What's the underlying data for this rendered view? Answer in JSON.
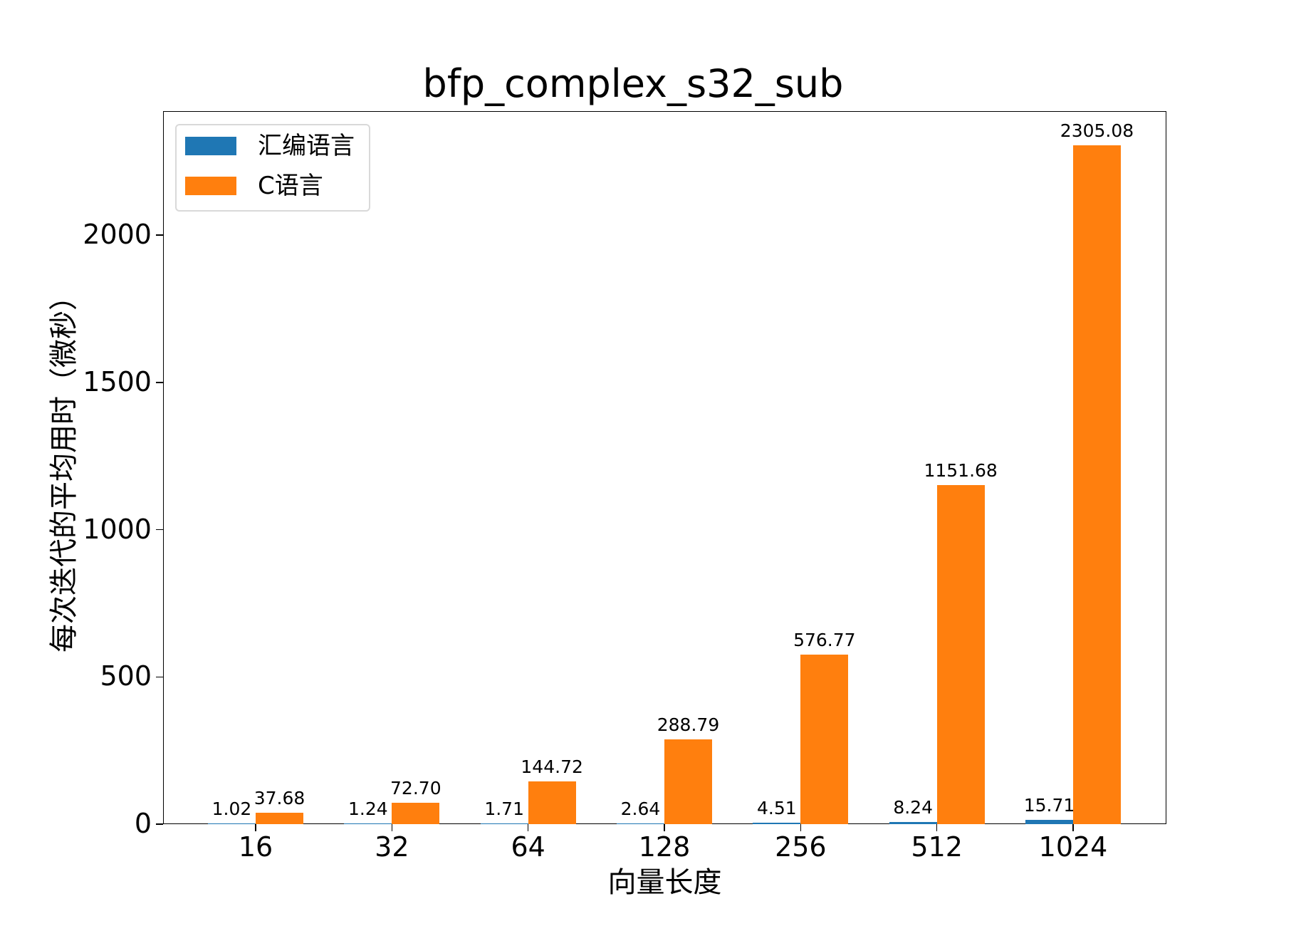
{
  "chart_data": {
    "type": "bar",
    "title": "bfp_complex_s32_sub",
    "xlabel": "向量长度",
    "ylabel": "每次迭代的平均用时（微秒）",
    "categories": [
      "16",
      "32",
      "64",
      "128",
      "256",
      "512",
      "1024"
    ],
    "series": [
      {
        "name": "汇编语言",
        "color": "#1f77b4",
        "values": [
          1.02,
          1.24,
          1.71,
          2.64,
          4.51,
          8.24,
          15.71
        ],
        "labels": [
          "1.02",
          "1.24",
          "1.71",
          "2.64",
          "4.51",
          "8.24",
          "15.71"
        ]
      },
      {
        "name": "C语言",
        "color": "#ff7f0e",
        "values": [
          37.68,
          72.7,
          144.72,
          288.79,
          576.77,
          1151.68,
          2305.08
        ],
        "labels": [
          "37.68",
          "72.70",
          "144.72",
          "288.79",
          "576.77",
          "1151.68",
          "2305.08"
        ]
      }
    ],
    "yticks": [
      0,
      500,
      1000,
      1500,
      2000
    ],
    "ytick_labels": [
      "0",
      "500",
      "1000",
      "1500",
      "2000"
    ],
    "ylim": [
      0,
      2420
    ],
    "grid": false,
    "legend_position": "upper left"
  }
}
